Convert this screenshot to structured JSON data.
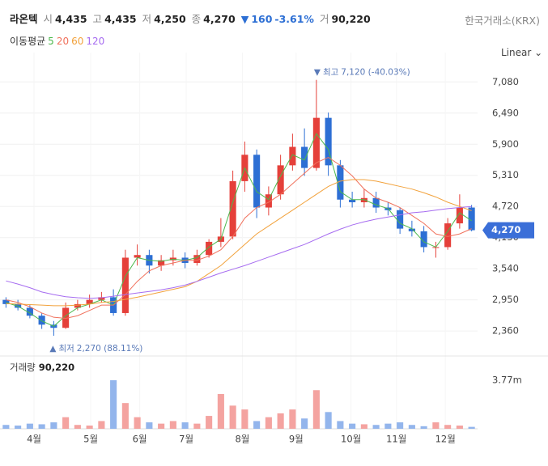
{
  "header": {
    "name": "라온텍",
    "open_label": "시",
    "open": "4,435",
    "high_label": "고",
    "high": "4,435",
    "low_label": "저",
    "low": "4,250",
    "close_label": "종",
    "close": "4,270",
    "change_arrow": "▼",
    "change": "160",
    "change_pct": "-3.61%",
    "volume_label": "거",
    "volume": "90,220",
    "exchange": "한국거래소(KRX)"
  },
  "chart_data": {
    "type": "candlestick",
    "scale": "Linear",
    "ma_title": "이동평균",
    "xlim": [
      -0.5,
      39.5
    ],
    "xticks": [
      {
        "value": 2.35,
        "label": "4월"
      },
      {
        "value": 7.1,
        "label": "5월"
      },
      {
        "value": 11.2,
        "label": "6월"
      },
      {
        "value": 15.1,
        "label": "7월"
      },
      {
        "value": 19.8,
        "label": "8월"
      },
      {
        "value": 24.3,
        "label": "9월"
      },
      {
        "value": 28.9,
        "label": "10월"
      },
      {
        "value": 32.7,
        "label": "11월"
      },
      {
        "value": 36.8,
        "label": "12월"
      }
    ],
    "ylim": [
      2040,
      7330
    ],
    "yticks": [
      {
        "value": 2360,
        "label": "2,360"
      },
      {
        "value": 2950,
        "label": "2,950"
      },
      {
        "value": 3540,
        "label": "3,540"
      },
      {
        "value": 4130,
        "label": "4,130"
      },
      {
        "value": 4720,
        "label": "4,720"
      },
      {
        "value": 5310,
        "label": "5,310"
      },
      {
        "value": 5900,
        "label": "5,900"
      },
      {
        "value": 6490,
        "label": "6,490"
      },
      {
        "value": 7080,
        "label": "7,080"
      }
    ],
    "grid": true,
    "up_color": "#e5403a",
    "down_color": "#2d6fd4",
    "open": [
      2950,
      2870,
      2800,
      2650,
      2480,
      2420,
      2800,
      2870,
      2950,
      3000,
      2700,
      3750,
      3800,
      3600,
      3700,
      3750,
      3650,
      3800,
      4050,
      4150,
      5200,
      5700,
      4700,
      4950,
      5500,
      5850,
      5450,
      6400,
      5500,
      4850,
      4800,
      4880,
      4700,
      4650,
      4300,
      4250,
      3950,
      3950,
      4400,
      4700
    ],
    "high": [
      3000,
      2950,
      2850,
      2700,
      2550,
      2900,
      2950,
      3050,
      3100,
      3150,
      3900,
      4000,
      3900,
      3800,
      3900,
      3850,
      3900,
      4100,
      4500,
      5400,
      5950,
      5800,
      5100,
      5700,
      6100,
      6200,
      7120,
      6500,
      5600,
      5000,
      5050,
      5000,
      4800,
      4700,
      4450,
      4350,
      4050,
      4500,
      4950,
      4750
    ],
    "low": [
      2800,
      2750,
      2600,
      2400,
      2270,
      2400,
      2750,
      2800,
      2900,
      2650,
      2650,
      3600,
      3450,
      3500,
      3600,
      3550,
      3600,
      3750,
      3950,
      4100,
      5000,
      4500,
      4550,
      4850,
      5400,
      5300,
      5400,
      5300,
      4700,
      4700,
      4700,
      4600,
      4550,
      4200,
      4150,
      3850,
      3750,
      3900,
      4300,
      4250
    ],
    "close": [
      2870,
      2800,
      2650,
      2480,
      2420,
      2800,
      2870,
      2950,
      3000,
      2700,
      3750,
      3800,
      3600,
      3700,
      3750,
      3650,
      3800,
      4050,
      4150,
      5200,
      5700,
      4700,
      4950,
      5500,
      5850,
      5450,
      6400,
      5500,
      4850,
      4800,
      4880,
      4700,
      4650,
      4300,
      4250,
      3950,
      3950,
      4400,
      4700,
      4270
    ],
    "moving_averages": [
      {
        "name": "5",
        "color": "#4cb84c",
        "values": [
          2900,
          2830,
          2700,
          2550,
          2450,
          2650,
          2800,
          2870,
          2950,
          2850,
          3400,
          3750,
          3700,
          3680,
          3720,
          3700,
          3750,
          3950,
          4100,
          4800,
          5450,
          5000,
          4850,
          5300,
          5700,
          5600,
          6100,
          5800,
          5000,
          4850,
          4850,
          4750,
          4680,
          4400,
          4300,
          4050,
          3950,
          4250,
          4600,
          4450
        ]
      },
      {
        "name": "20",
        "color": "#f0715c",
        "values": [
          2950,
          2900,
          2820,
          2700,
          2620,
          2600,
          2650,
          2750,
          2850,
          2850,
          3050,
          3300,
          3500,
          3600,
          3650,
          3700,
          3700,
          3780,
          3900,
          4150,
          4500,
          4700,
          4800,
          4950,
          5150,
          5350,
          5550,
          5650,
          5500,
          5300,
          5050,
          4880,
          4800,
          4700,
          4550,
          4400,
          4200,
          4150,
          4200,
          4300
        ]
      },
      {
        "name": "60",
        "color": "#f2a23c",
        "values": [
          2880,
          2870,
          2860,
          2850,
          2840,
          2840,
          2850,
          2870,
          2900,
          2920,
          2960,
          3000,
          3050,
          3100,
          3150,
          3200,
          3300,
          3450,
          3600,
          3800,
          4000,
          4200,
          4350,
          4500,
          4650,
          4800,
          4950,
          5100,
          5200,
          5230,
          5230,
          5200,
          5150,
          5100,
          5050,
          4980,
          4900,
          4800,
          4720,
          4640
        ]
      },
      {
        "name": "120",
        "color": "#a66cf0",
        "values": [
          3310,
          3250,
          3180,
          3100,
          3050,
          3010,
          2990,
          2980,
          2990,
          3020,
          3050,
          3080,
          3110,
          3140,
          3180,
          3230,
          3300,
          3380,
          3460,
          3530,
          3600,
          3680,
          3760,
          3840,
          3920,
          4000,
          4100,
          4200,
          4290,
          4370,
          4430,
          4480,
          4520,
          4560,
          4600,
          4620,
          4650,
          4680,
          4700,
          4720
        ]
      }
    ],
    "high_annotation": {
      "marker": "▼",
      "label": "최고",
      "text": "7,120 (-40.03%)"
    },
    "low_annotation": {
      "marker": "▲",
      "label": "최저",
      "text": "2,270 (88.11%)"
    },
    "price_tag": {
      "value": 4270,
      "label": "4,270"
    },
    "volume": {
      "title": "거래량",
      "last": "90,220",
      "ylim": [
        0,
        5340000
      ],
      "yticks": [
        {
          "value": 3770000,
          "label": "3.77m"
        }
      ],
      "values": [
        300000,
        250000,
        400000,
        350000,
        500000,
        900000,
        300000,
        250000,
        600000,
        3770000,
        2000000,
        900000,
        500000,
        400000,
        600000,
        500000,
        400000,
        1000000,
        2700000,
        1800000,
        1500000,
        600000,
        900000,
        1200000,
        1500000,
        800000,
        3000000,
        1300000,
        600000,
        400000,
        350000,
        300000,
        400000,
        500000,
        300000,
        200000,
        500000,
        300000,
        250000,
        150000
      ]
    }
  }
}
